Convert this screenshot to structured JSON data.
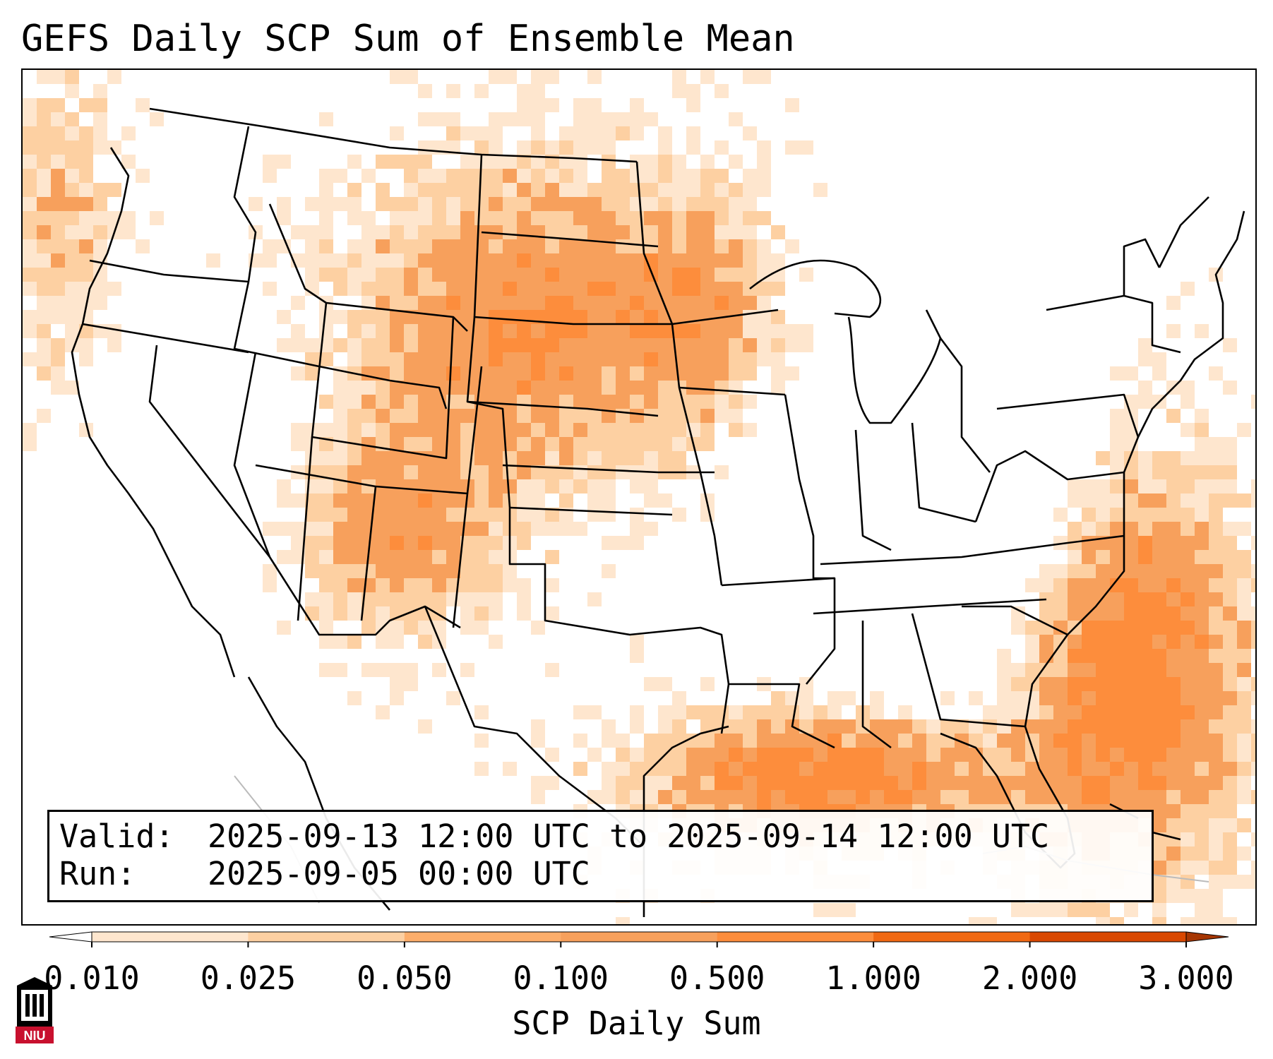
{
  "title": "GEFS Daily SCP Sum of Ensemble Mean",
  "info": {
    "valid_label": "Valid:",
    "valid_value": "2025-09-13 12:00 UTC to 2025-09-14 12:00 UTC",
    "run_label": "Run:",
    "run_value": "2025-09-05 00:00 UTC"
  },
  "colorbar": {
    "label": "SCP Daily Sum",
    "ticks": [
      "0.010",
      "0.025",
      "0.050",
      "0.100",
      "0.500",
      "1.000",
      "2.000",
      "3.000"
    ],
    "colors": [
      "#fee6ce",
      "#fdd0a2",
      "#fdae6b",
      "#f7a05c",
      "#fd8d3c",
      "#f16913",
      "#d94801"
    ],
    "under_color": "#ffffff",
    "over_color": "#a63603",
    "extend": "both"
  },
  "logo": {
    "text": "NIU",
    "icon": "niu-logo-icon",
    "color": "#c8102e"
  },
  "map": {
    "region": "CONUS",
    "projection": "Lambert conformal",
    "high_areas": [
      "Northern Plains",
      "Southwest",
      "Gulf of Mexico",
      "Western Atlantic"
    ]
  }
}
